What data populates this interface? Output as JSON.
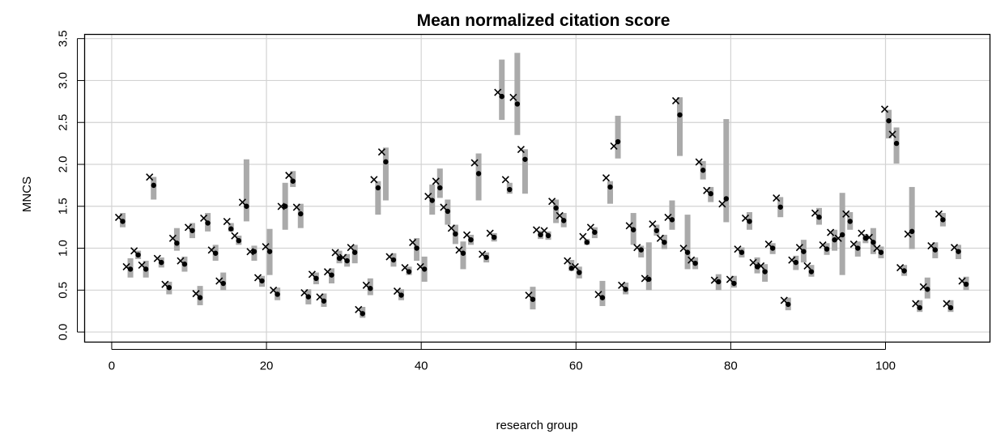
{
  "chart_data": {
    "type": "scatter",
    "title": "Mean normalized citation score",
    "xlabel": "research group",
    "ylabel": "MNCS",
    "xlim": [
      -3.5,
      113.5
    ],
    "ylim": [
      -0.12,
      3.55
    ],
    "x_ticks": [
      0,
      20,
      40,
      60,
      80,
      100
    ],
    "x_tick_labels": [
      "0",
      "20",
      "40",
      "60",
      "80",
      "100"
    ],
    "y_ticks": [
      0.0,
      0.5,
      1.0,
      1.5,
      2.0,
      2.5,
      3.0,
      3.5
    ],
    "y_tick_labels": [
      "0.0",
      "0.5",
      "1.0",
      "1.5",
      "2.0",
      "2.5",
      "3.0",
      "3.5"
    ],
    "grid": true,
    "colors": {
      "interval": "#aaaaaa",
      "marker": "#000000",
      "grid": "#d3d3d3"
    },
    "series": [
      {
        "marker": "dot",
        "x": [
          1,
          2,
          3,
          4,
          5,
          6,
          7,
          8,
          9,
          10,
          11,
          12,
          13,
          14,
          15,
          16,
          17,
          18,
          19,
          20,
          21,
          22,
          23,
          24,
          25,
          26,
          27,
          28,
          29,
          30,
          31,
          32,
          33,
          34,
          35,
          36,
          37,
          38,
          39,
          40,
          41,
          42,
          43,
          44,
          45,
          46,
          47,
          48,
          49,
          50,
          51,
          52,
          53,
          54,
          55,
          56,
          57,
          58,
          59,
          60,
          61,
          62,
          63,
          64,
          65,
          66,
          67,
          68,
          69,
          70,
          71,
          72,
          73,
          74,
          75,
          76,
          77,
          78,
          79,
          80,
          81,
          82,
          83,
          84,
          85,
          86,
          87,
          88,
          89,
          90,
          91,
          92,
          93,
          94,
          95,
          96,
          97,
          98,
          99,
          100,
          101,
          102,
          103,
          104,
          105,
          106,
          107,
          108,
          109,
          110
        ],
        "y": [
          1.32,
          0.75,
          0.92,
          0.75,
          1.75,
          0.83,
          0.53,
          1.06,
          0.81,
          1.21,
          0.41,
          1.3,
          0.94,
          0.58,
          1.23,
          1.09,
          1.5,
          0.96,
          0.61,
          0.96,
          0.45,
          1.5,
          1.8,
          1.41,
          0.42,
          0.64,
          0.37,
          0.68,
          0.88,
          0.85,
          0.95,
          0.22,
          0.52,
          1.72,
          2.03,
          0.86,
          0.44,
          0.72,
          1.0,
          0.75,
          1.57,
          1.72,
          1.44,
          1.17,
          0.94,
          1.1,
          1.89,
          0.89,
          1.13,
          2.81,
          1.7,
          2.72,
          2.06,
          0.39,
          1.16,
          1.15,
          1.48,
          1.33,
          0.76,
          0.71,
          1.07,
          1.19,
          0.41,
          1.73,
          2.27,
          0.51,
          1.22,
          0.98,
          0.63,
          1.21,
          1.07,
          1.34,
          2.59,
          0.95,
          0.82,
          1.93,
          1.65,
          0.6,
          1.59,
          0.58,
          0.95,
          1.32,
          0.78,
          0.72,
          1.0,
          1.49,
          0.33,
          0.83,
          0.96,
          0.72,
          1.37,
          0.99,
          1.1,
          1.16,
          1.32,
          1.0,
          1.12,
          1.07,
          0.95,
          2.52,
          2.25,
          0.73,
          1.2,
          0.29,
          0.51,
          0.98,
          1.34,
          0.29,
          0.96,
          0.57
        ]
      },
      {
        "marker": "cross",
        "x": [
          1,
          2,
          3,
          4,
          5,
          6,
          7,
          8,
          9,
          10,
          11,
          12,
          13,
          14,
          15,
          16,
          17,
          18,
          19,
          20,
          21,
          22,
          23,
          24,
          25,
          26,
          27,
          28,
          29,
          30,
          31,
          32,
          33,
          34,
          35,
          36,
          37,
          38,
          39,
          40,
          41,
          42,
          43,
          44,
          45,
          46,
          47,
          48,
          49,
          50,
          51,
          52,
          53,
          54,
          55,
          56,
          57,
          58,
          59,
          60,
          61,
          62,
          63,
          64,
          65,
          66,
          67,
          68,
          69,
          70,
          71,
          72,
          73,
          74,
          75,
          76,
          77,
          78,
          79,
          80,
          81,
          82,
          83,
          84,
          85,
          86,
          87,
          88,
          89,
          90,
          91,
          92,
          93,
          94,
          95,
          96,
          97,
          98,
          99,
          100,
          101,
          102,
          103,
          104,
          105,
          106,
          107,
          108,
          109,
          110
        ],
        "y": [
          1.32,
          0.73,
          0.92,
          0.75,
          1.8,
          0.83,
          0.52,
          1.07,
          0.8,
          1.2,
          0.41,
          1.31,
          0.93,
          0.56,
          1.27,
          1.1,
          1.5,
          0.91,
          0.6,
          0.97,
          0.45,
          1.45,
          1.82,
          1.44,
          0.42,
          0.64,
          0.37,
          0.67,
          0.9,
          0.84,
          0.96,
          0.22,
          0.51,
          1.77,
          2.1,
          0.85,
          0.44,
          0.72,
          1.02,
          0.73,
          1.57,
          1.75,
          1.44,
          1.19,
          0.93,
          1.11,
          1.97,
          0.88,
          1.13,
          2.81,
          1.77,
          2.75,
          2.13,
          0.39,
          1.17,
          1.16,
          1.51,
          1.34,
          0.8,
          0.73,
          1.09,
          1.2,
          0.4,
          1.79,
          2.17,
          0.51,
          1.22,
          0.96,
          0.59,
          1.24,
          1.07,
          1.32,
          2.71,
          0.95,
          0.81,
          1.98,
          1.64,
          0.57,
          1.48,
          0.58,
          0.94,
          1.31,
          0.78,
          0.74,
          1.0,
          1.55,
          0.33,
          0.81,
          0.96,
          0.74,
          1.37,
          0.99,
          1.14,
          1.07,
          1.36,
          1.0,
          1.13,
          1.08,
          0.95,
          2.61,
          2.31,
          0.72,
          1.12,
          0.29,
          0.49,
          0.98,
          1.36,
          0.29,
          0.96,
          0.56
        ]
      },
      {
        "marker": "interval",
        "x": [
          1,
          2,
          3,
          4,
          5,
          6,
          7,
          8,
          9,
          10,
          11,
          12,
          13,
          14,
          15,
          16,
          17,
          18,
          19,
          20,
          21,
          22,
          23,
          24,
          25,
          26,
          27,
          28,
          29,
          30,
          31,
          32,
          33,
          34,
          35,
          36,
          37,
          38,
          39,
          40,
          41,
          42,
          43,
          44,
          45,
          46,
          47,
          48,
          49,
          50,
          51,
          52,
          53,
          54,
          55,
          56,
          57,
          58,
          59,
          60,
          61,
          62,
          63,
          64,
          65,
          66,
          67,
          68,
          69,
          70,
          71,
          72,
          73,
          74,
          75,
          76,
          77,
          78,
          79,
          80,
          81,
          82,
          83,
          84,
          85,
          86,
          87,
          88,
          89,
          90,
          91,
          92,
          93,
          94,
          95,
          96,
          97,
          98,
          99,
          100,
          101,
          102,
          103,
          104,
          105,
          106,
          107,
          108,
          109,
          110
        ],
        "low": [
          1.25,
          0.65,
          0.87,
          0.65,
          1.58,
          0.77,
          0.45,
          0.97,
          0.72,
          1.12,
          0.32,
          1.2,
          0.85,
          0.5,
          1.2,
          1.04,
          1.32,
          0.85,
          0.54,
          0.68,
          0.38,
          1.22,
          1.73,
          1.24,
          0.33,
          0.57,
          0.3,
          0.58,
          0.82,
          0.78,
          0.82,
          0.17,
          0.44,
          1.4,
          1.57,
          0.78,
          0.38,
          0.68,
          0.85,
          0.6,
          1.4,
          1.6,
          1.28,
          1.05,
          0.75,
          1.04,
          1.57,
          0.83,
          1.08,
          2.53,
          1.65,
          2.35,
          1.65,
          0.27,
          1.11,
          1.1,
          1.3,
          1.25,
          0.73,
          0.64,
          1.04,
          1.12,
          0.31,
          1.53,
          2.07,
          0.45,
          1.04,
          0.89,
          0.5,
          1.15,
          0.99,
          1.22,
          2.1,
          0.75,
          0.75,
          1.82,
          1.55,
          0.5,
          1.31,
          0.53,
          0.89,
          1.22,
          0.7,
          0.6,
          0.93,
          1.37,
          0.26,
          0.74,
          0.83,
          0.66,
          1.28,
          0.92,
          0.97,
          0.68,
          1.22,
          0.9,
          1.06,
          0.93,
          0.88,
          2.31,
          2.01,
          0.67,
          0.99,
          0.24,
          0.4,
          0.88,
          1.26,
          0.24,
          0.87,
          0.5
        ],
        "high": [
          1.42,
          0.88,
          0.97,
          0.85,
          1.85,
          0.89,
          0.6,
          1.24,
          0.9,
          1.3,
          0.55,
          1.42,
          1.04,
          0.71,
          1.3,
          1.15,
          2.06,
          1.03,
          0.67,
          1.23,
          0.53,
          1.78,
          1.92,
          1.53,
          0.51,
          0.71,
          0.46,
          0.76,
          0.97,
          0.93,
          1.04,
          0.3,
          0.64,
          1.8,
          2.2,
          0.94,
          0.51,
          0.78,
          1.12,
          0.9,
          1.76,
          1.95,
          1.58,
          1.28,
          1.08,
          1.16,
          2.13,
          0.95,
          1.18,
          3.25,
          1.78,
          3.33,
          2.18,
          0.54,
          1.21,
          1.2,
          1.58,
          1.42,
          0.86,
          0.78,
          1.11,
          1.25,
          0.61,
          1.8,
          2.58,
          0.59,
          1.42,
          1.03,
          1.07,
          1.28,
          1.16,
          1.57,
          2.8,
          1.4,
          0.89,
          2.04,
          1.73,
          0.69,
          2.54,
          0.67,
          1.01,
          1.43,
          0.89,
          0.81,
          1.06,
          1.61,
          0.41,
          0.91,
          1.1,
          0.8,
          1.48,
          1.06,
          1.22,
          1.66,
          1.43,
          1.08,
          1.17,
          1.24,
          1.02,
          2.65,
          2.44,
          0.8,
          1.73,
          0.38,
          0.65,
          1.07,
          1.42,
          0.38,
          1.04,
          0.66
        ]
      }
    ]
  }
}
